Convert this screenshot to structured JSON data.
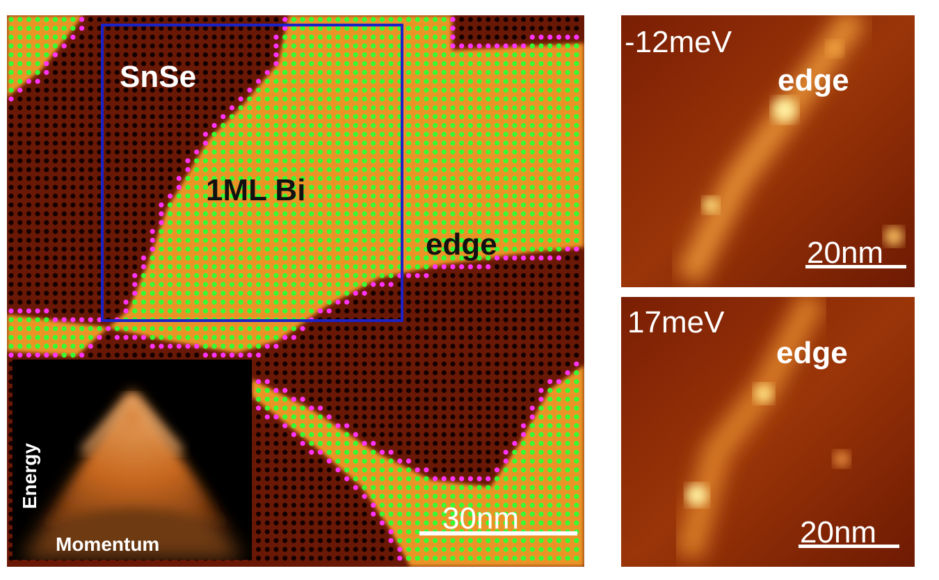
{
  "main_image": {
    "labels": {
      "material": "SnSe",
      "layer": "1ML Bi",
      "edge": "edge"
    },
    "scale_bar": "30nm",
    "inset": {
      "y_axis": "Energy",
      "x_axis": "Momentum"
    }
  },
  "panels": [
    {
      "energy": "-12meV",
      "label": "edge",
      "scale_bar": "20nm"
    },
    {
      "energy": "17meV",
      "label": "edge",
      "scale_bar": "20nm"
    }
  ]
}
